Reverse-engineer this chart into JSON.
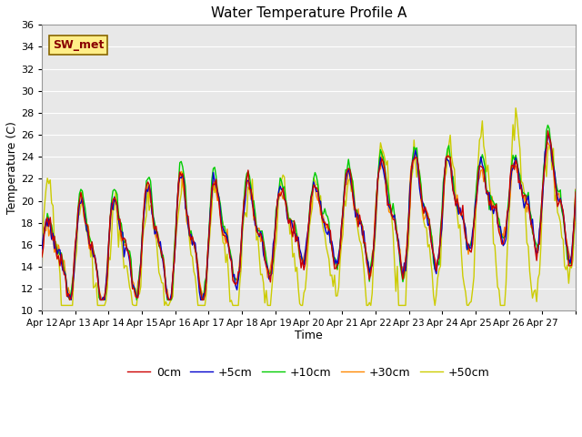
{
  "title": "Water Temperature Profile A",
  "xlabel": "Time",
  "ylabel": "Temperature (C)",
  "ylim": [
    10,
    36
  ],
  "yticks": [
    10,
    12,
    14,
    16,
    18,
    20,
    22,
    24,
    26,
    28,
    30,
    32,
    34,
    36
  ],
  "x_labels": [
    "Apr 12",
    "Apr 13",
    "Apr 14",
    "Apr 15",
    "Apr 16",
    "Apr 17",
    "Apr 18",
    "Apr 19",
    "Apr 20",
    "Apr 21",
    "Apr 22",
    "Apr 23",
    "Apr 24",
    "Apr 25",
    "Apr 26",
    "Apr 27"
  ],
  "legend_labels": [
    "0cm",
    "+5cm",
    "+10cm",
    "+30cm",
    "+50cm"
  ],
  "colors": [
    "#cc0000",
    "#0000cc",
    "#00cc00",
    "#ff8800",
    "#cccc00"
  ],
  "annotation_text": "SW_met",
  "annotation_box_color": "#ffee88",
  "annotation_text_color": "#880000",
  "annotation_edge_color": "#886600",
  "fig_bg_color": "#ffffff",
  "plot_bg_color": "#e8e8e8",
  "grid_color": "#ffffff",
  "line_width": 1.0,
  "title_fontsize": 11,
  "label_fontsize": 9,
  "tick_fontsize": 8,
  "legend_fontsize": 9
}
